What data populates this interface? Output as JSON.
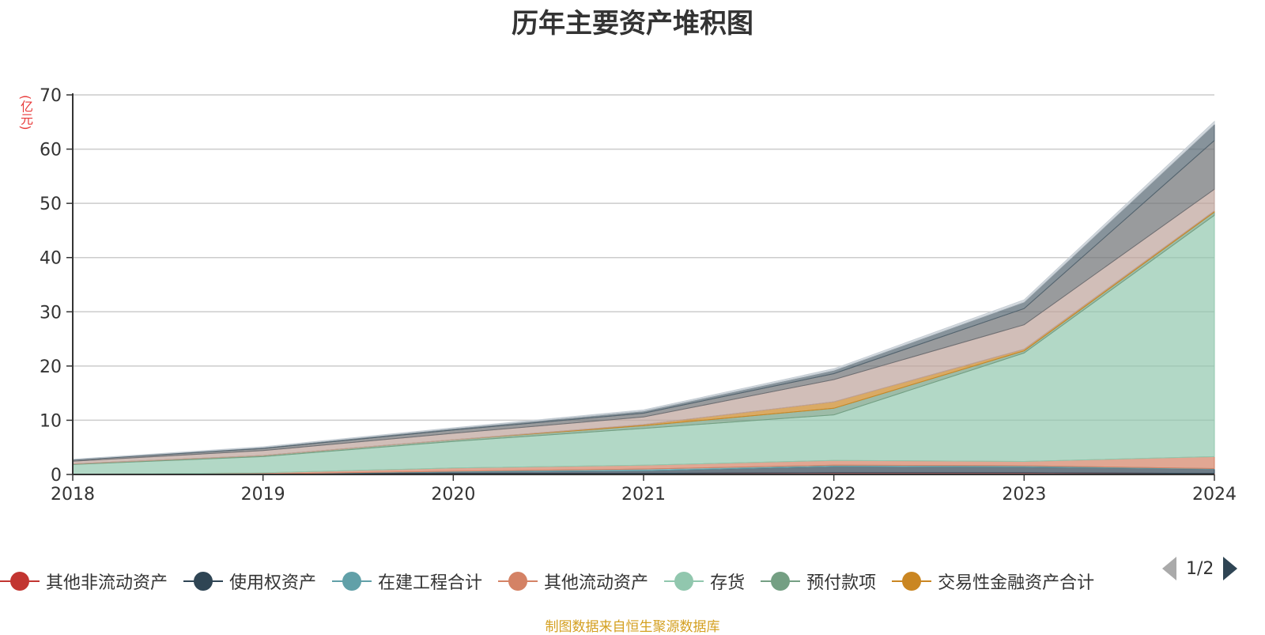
{
  "colors": {
    "axis": "#333333",
    "grid": "#cccccc"
  },
  "chart_data": {
    "type": "area",
    "stacked": true,
    "title": "历年主要资产堆积图",
    "ylabel": "(亿元)",
    "x": [
      "2018",
      "2019",
      "2020",
      "2021",
      "2022",
      "2023",
      "2024"
    ],
    "yticks": [
      "0",
      "10",
      "20",
      "30",
      "40",
      "50",
      "60",
      "70"
    ],
    "ylim": [
      0,
      70
    ],
    "grid": true,
    "legend_position": "bottom",
    "series": [
      {
        "name": "其他非流动资产",
        "color": "#c23531",
        "values": [
          0.05,
          0.1,
          0.2,
          0.2,
          0.3,
          0.3,
          0.2
        ]
      },
      {
        "name": "使用权资产",
        "color": "#2f4554",
        "values": [
          0,
          0,
          0.3,
          0.5,
          1.2,
          1.1,
          0.8
        ]
      },
      {
        "name": "在建工程合计",
        "color": "#61a0a8",
        "values": [
          0,
          0,
          0.1,
          0.3,
          0.2,
          0.2,
          0.1
        ]
      },
      {
        "name": "其他流动资产",
        "color": "#d48265",
        "values": [
          0,
          0.2,
          0.6,
          0.7,
          0.9,
          0.8,
          2.2
        ]
      },
      {
        "name": "存货",
        "color": "#91c7ae",
        "values": [
          1.8,
          3.0,
          4.9,
          6.8,
          8.4,
          20.0,
          44.5
        ]
      },
      {
        "name": "预付款项",
        "color": "#749f83",
        "values": [
          0.1,
          0.2,
          0.3,
          0.5,
          1.2,
          0.4,
          0.6
        ]
      },
      {
        "name": "交易性金融资产合计",
        "color": "#ca8622",
        "values": [
          0,
          0,
          0,
          0.2,
          1.2,
          0.3,
          0.2
        ]
      },
      {
        "name": "",
        "color": "#bda29a",
        "values": [
          0.5,
          0.9,
          1.2,
          1.4,
          4.1,
          4.5,
          4.0
        ]
      },
      {
        "name": "",
        "color": "#6e7074",
        "values": [
          0.2,
          0.4,
          0.6,
          0.7,
          1.1,
          3.0,
          9.0
        ]
      },
      {
        "name": "",
        "color": "#546570",
        "values": [
          0.1,
          0.2,
          0.3,
          0.4,
          0.6,
          1.2,
          3.0
        ]
      },
      {
        "name": "",
        "color": "#c4ccd3",
        "values": [
          0.05,
          0.1,
          0.1,
          0.2,
          0.3,
          0.4,
          0.5
        ]
      }
    ]
  },
  "legend": {
    "items": [
      {
        "label": "其他非流动资产",
        "color": "#c23531"
      },
      {
        "label": "使用权资产",
        "color": "#2f4554"
      },
      {
        "label": "在建工程合计",
        "color": "#61a0a8"
      },
      {
        "label": "其他流动资产",
        "color": "#d48265"
      },
      {
        "label": "存货",
        "color": "#91c7ae"
      },
      {
        "label": "预付款项",
        "color": "#749f83"
      },
      {
        "label": "交易性金融资产合计",
        "color": "#ca8622"
      }
    ],
    "pager": "1/2"
  },
  "footer": {
    "source": "制图数据来自恒生聚源数据库"
  }
}
